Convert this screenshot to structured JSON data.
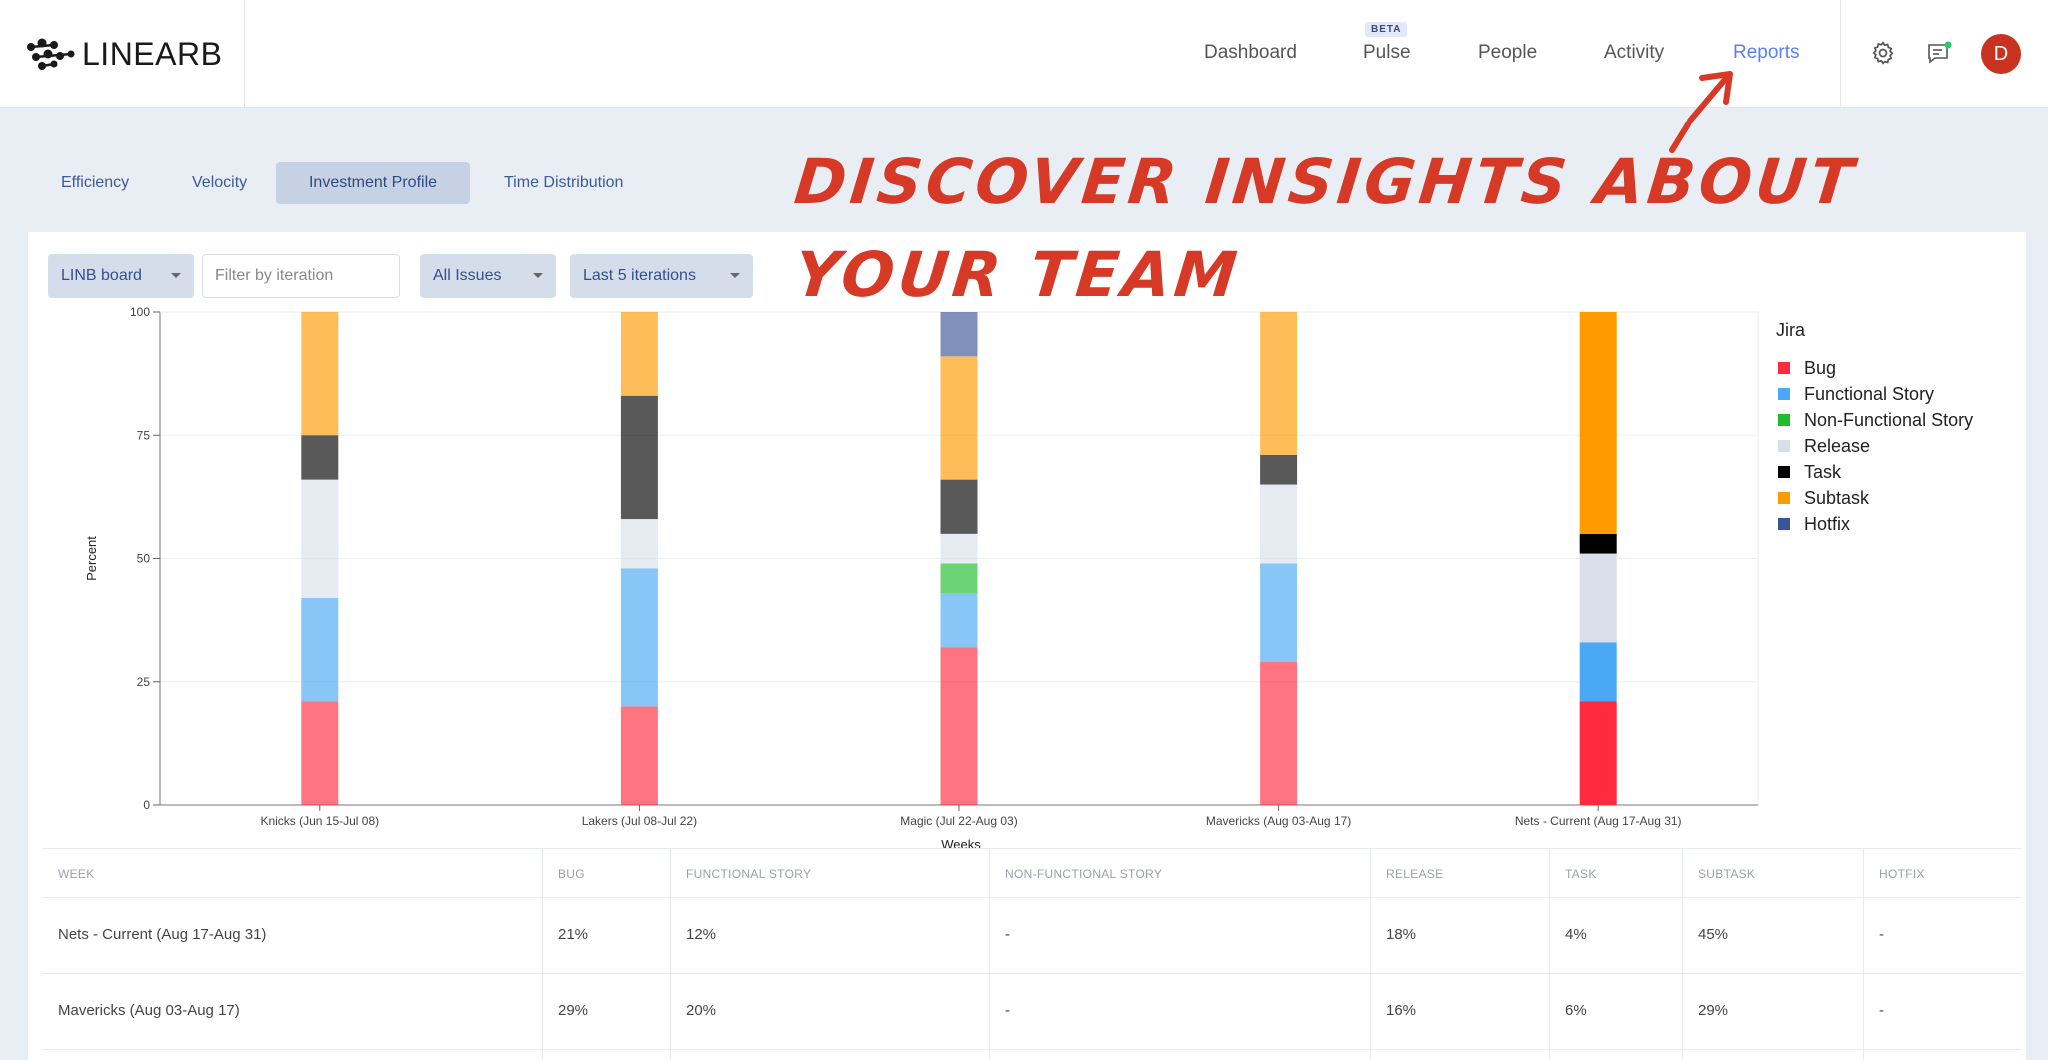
{
  "brand": {
    "logo_text": "LINEARB"
  },
  "nav": {
    "items": [
      {
        "label": "Dashboard"
      },
      {
        "label": "Pulse"
      },
      {
        "label": "People"
      },
      {
        "label": "Activity"
      },
      {
        "label": "Reports"
      }
    ],
    "active": "Reports",
    "beta_badge": "BETA",
    "avatar_initial": "D"
  },
  "subtabs": [
    "Efficiency",
    "Velocity",
    "Investment Profile",
    "Time Distribution"
  ],
  "active_subtab": "Investment Profile",
  "filters": {
    "board": "LINB board",
    "iteration_placeholder": "Filter by iteration",
    "issues": "All Issues",
    "range": "Last 5 iterations"
  },
  "annotation": {
    "line1": "DISCOVER INSIGHTS ABOUT",
    "line2": "YOUR TEAM"
  },
  "chart_data": {
    "type": "bar",
    "stacked": true,
    "xlabel": "Weeks",
    "ylabel": "Percent",
    "ylim": [
      0,
      100
    ],
    "yticks": [
      0,
      25,
      50,
      75,
      100
    ],
    "grid": true,
    "legend_title": "Jira",
    "legend_position": "right",
    "categories": [
      "Knicks (Jun 15-Jul 08)",
      "Lakers (Jul 08-Jul 22)",
      "Magic (Jul 22-Aug 03)",
      "Mavericks (Aug 03-Aug 17)",
      "Nets - Current (Aug 17-Aug 31)"
    ],
    "series": [
      {
        "name": "Bug",
        "color": "#ff2a3e",
        "values": [
          21,
          20,
          32,
          29,
          21
        ]
      },
      {
        "name": "Functional Story",
        "color": "#4aa8f5",
        "values": [
          21,
          28,
          11,
          20,
          12
        ]
      },
      {
        "name": "Non-Functional Story",
        "color": "#1ebd2c",
        "values": [
          0,
          0,
          6,
          0,
          0
        ]
      },
      {
        "name": "Release",
        "color": "#d9deea",
        "values": [
          24,
          10,
          6,
          16,
          18
        ]
      },
      {
        "name": "Task",
        "color": "#000000",
        "values": [
          9,
          25,
          11,
          6,
          4
        ]
      },
      {
        "name": "Subtask",
        "color": "#ff9a00",
        "values": [
          25,
          17,
          25,
          29,
          45
        ]
      },
      {
        "name": "Hotfix",
        "color": "#3a5598",
        "values": [
          0,
          0,
          9,
          0,
          0
        ]
      }
    ],
    "highlight_category_index": 4
  },
  "table": {
    "headers": [
      "WEEK",
      "BUG",
      "FUNCTIONAL STORY",
      "NON-FUNCTIONAL STORY",
      "RELEASE",
      "TASK",
      "SUBTASK",
      "HOTFIX"
    ],
    "rows": [
      [
        "Nets - Current (Aug 17-Aug 31)",
        "21%",
        "12%",
        "-",
        "18%",
        "4%",
        "45%",
        "-"
      ],
      [
        "Mavericks (Aug 03-Aug 17)",
        "29%",
        "20%",
        "-",
        "16%",
        "6%",
        "29%",
        "-"
      ]
    ]
  }
}
